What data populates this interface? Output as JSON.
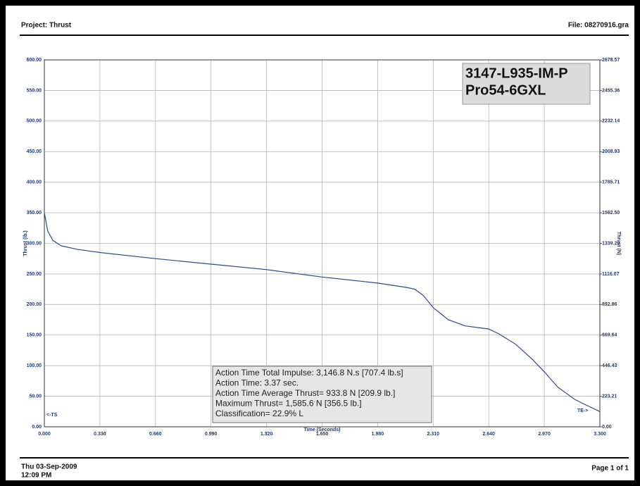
{
  "header": {
    "project": "Project: Thrust",
    "file": "File: 08270916.gra"
  },
  "footer": {
    "date": "Thu 03-Sep-2009",
    "time": "12:09 PM",
    "page": "Page 1 of 1"
  },
  "chart_data": {
    "type": "line",
    "x_label": "Time (Seconds)",
    "y_label": "Thrust (lb.)",
    "y2_label": "Thrust (N)",
    "motor_label": [
      "3147-L935-IM-P",
      "Pro54-6GXL"
    ],
    "info_box": [
      "Action Time Total Impulse: 3,146.8 N.s [707.4 lb.s]",
      "Action Time: 3.37 sec.",
      "Action Time Average Thrust= 933.8 N [209.9 lb.]",
      "Maximum Thrust= 1,585.6 N [356.5 lb.]",
      "Classification= 22.9% L"
    ],
    "annotations": {
      "ts": "<-TS",
      "te": "TE->"
    },
    "x": [
      0,
      0.02,
      0.05,
      0.1,
      0.2,
      0.33,
      0.66,
      0.99,
      1.32,
      1.65,
      1.98,
      2.15,
      2.2,
      2.25,
      2.31,
      2.4,
      2.5,
      2.64,
      2.7,
      2.8,
      2.9,
      2.97,
      3.05,
      3.15,
      3.2,
      3.3
    ],
    "series": [
      {
        "color": "#2a4b8c",
        "values": [
          350,
          320,
          305,
          296,
          290,
          285,
          275,
          266,
          257,
          245,
          235,
          228,
          225,
          215,
          195,
          175,
          165,
          160,
          152,
          135,
          110,
          90,
          65,
          45,
          38,
          25
        ]
      }
    ],
    "xlim": [
      0,
      3.3
    ],
    "xticks": [
      {
        "value": 0,
        "label": "0.000"
      },
      {
        "value": 0.33,
        "label": "0.330"
      },
      {
        "value": 0.66,
        "label": "0.660"
      },
      {
        "value": 0.99,
        "label": "0.990"
      },
      {
        "value": 1.32,
        "label": "1.320"
      },
      {
        "value": 1.65,
        "label": "1.650"
      },
      {
        "value": 1.98,
        "label": "1.980"
      },
      {
        "value": 2.31,
        "label": "2.310"
      },
      {
        "value": 2.64,
        "label": "2.640"
      },
      {
        "value": 2.97,
        "label": "2.970"
      },
      {
        "value": 3.3,
        "label": "3.300"
      }
    ],
    "ylim": [
      0,
      600
    ],
    "yticks": [
      {
        "value": 0,
        "label": "0.00"
      },
      {
        "value": 50,
        "label": "50.00"
      },
      {
        "value": 100,
        "label": "100.00"
      },
      {
        "value": 150,
        "label": "150.00"
      },
      {
        "value": 200,
        "label": "200.00"
      },
      {
        "value": 250,
        "label": "250.00"
      },
      {
        "value": 300,
        "label": "300.00"
      },
      {
        "value": 350,
        "label": "350.00"
      },
      {
        "value": 400,
        "label": "400.00"
      },
      {
        "value": 450,
        "label": "450.00"
      },
      {
        "value": 500,
        "label": "500.00"
      },
      {
        "value": 550,
        "label": "550.00"
      },
      {
        "value": 600,
        "label": "600.00"
      }
    ],
    "y2lim": [
      0,
      2678.57
    ],
    "y2ticks": [
      {
        "value": 0,
        "label": "0.00"
      },
      {
        "value": 223.21,
        "label": "223.21"
      },
      {
        "value": 446.43,
        "label": "446.43"
      },
      {
        "value": 669.64,
        "label": "669.64"
      },
      {
        "value": 892.86,
        "label": "892.86"
      },
      {
        "value": 1116.07,
        "label": "1116.07"
      },
      {
        "value": 1339.29,
        "label": "1339.29"
      },
      {
        "value": 1562.5,
        "label": "1562.50"
      },
      {
        "value": 1785.71,
        "label": "1785.71"
      },
      {
        "value": 2008.93,
        "label": "2008.93"
      },
      {
        "value": 2232.14,
        "label": "2232.14"
      },
      {
        "value": 2455.36,
        "label": "2455.36"
      },
      {
        "value": 2678.57,
        "label": "2678.57"
      }
    ],
    "grid": true
  }
}
